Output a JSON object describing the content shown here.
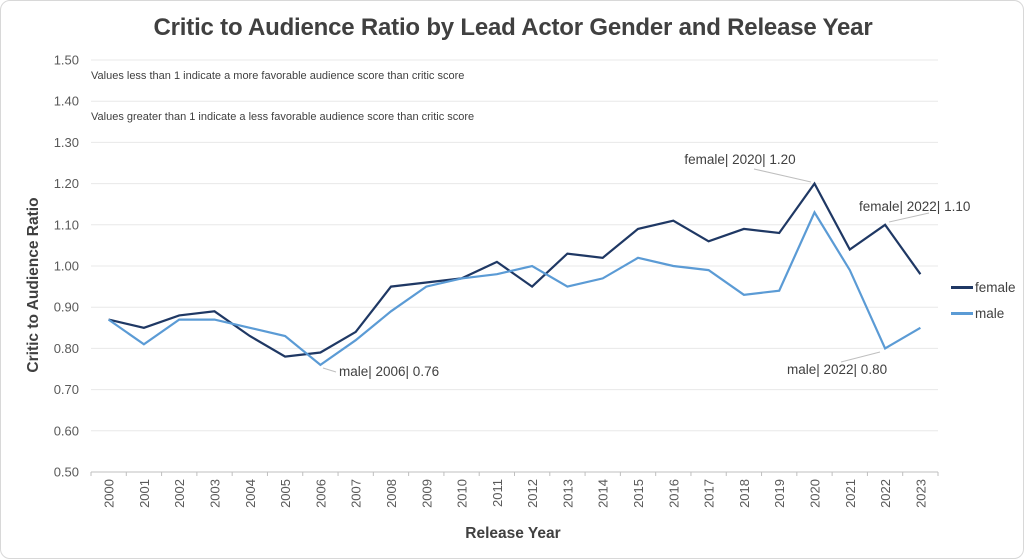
{
  "title": "Critic to Audience Ratio by Lead Actor Gender and Release Year",
  "notes": [
    "Values less than 1 indicate a more favorable audience score than critic score",
    "Values greater than 1 indicate a less favorable audience score than critic score"
  ],
  "chart_data": {
    "type": "line",
    "title": "Critic to Audience Ratio by Lead Actor Gender and Release Year",
    "xlabel": "Release Year",
    "ylabel": "Critic to Audience Ratio",
    "x": [
      2000,
      2001,
      2002,
      2003,
      2004,
      2005,
      2006,
      2007,
      2008,
      2009,
      2010,
      2011,
      2012,
      2013,
      2014,
      2015,
      2016,
      2017,
      2018,
      2019,
      2020,
      2021,
      2022,
      2023
    ],
    "series": [
      {
        "name": "female",
        "color": "#1F3864",
        "values": [
          0.87,
          0.85,
          0.88,
          0.89,
          0.83,
          0.78,
          0.79,
          0.84,
          0.95,
          0.96,
          0.97,
          1.01,
          0.95,
          1.03,
          1.02,
          1.09,
          1.11,
          1.06,
          1.09,
          1.08,
          1.2,
          1.04,
          1.1,
          0.98
        ]
      },
      {
        "name": "male",
        "color": "#5B9BD5",
        "values": [
          0.87,
          0.81,
          0.87,
          0.87,
          0.85,
          0.83,
          0.76,
          0.82,
          0.89,
          0.95,
          0.97,
          0.98,
          1.0,
          0.95,
          0.97,
          1.02,
          1.0,
          0.99,
          0.93,
          0.94,
          1.13,
          0.99,
          0.8,
          0.85
        ]
      }
    ],
    "ylim": [
      0.5,
      1.5
    ],
    "ytick_step": 0.1,
    "grid": true,
    "legend_position": "right",
    "annotations": [
      {
        "label": "male| 2006| 0.76",
        "series": "male",
        "x": 2006,
        "y": 0.76
      },
      {
        "label": "female| 2020| 1.20",
        "series": "female",
        "x": 2020,
        "y": 1.2
      },
      {
        "label": "female| 2022| 1.10",
        "series": "female",
        "x": 2022,
        "y": 1.1
      },
      {
        "label": "male| 2022| 0.80",
        "series": "male",
        "x": 2022,
        "y": 0.8
      }
    ]
  },
  "colors": {
    "title_text": "#404040",
    "tick_label": "#595959",
    "gridline": "#E8E8E8",
    "axis_line": "#BFBFBF",
    "leader_line": "#BFBFBF"
  }
}
